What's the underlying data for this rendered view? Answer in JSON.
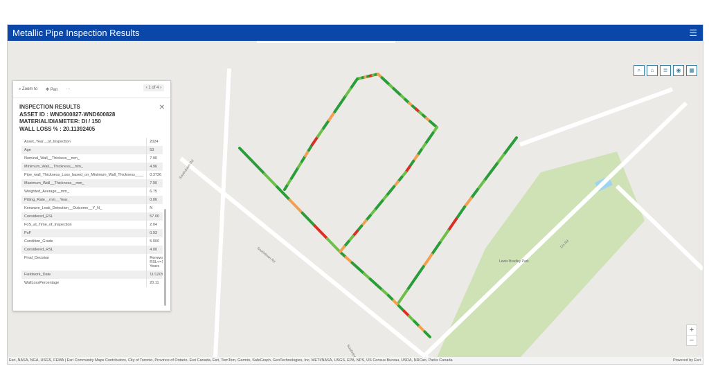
{
  "header": {
    "title": "Metallic Pipe Inspection Results",
    "menu_icon": "hamburger-icon"
  },
  "toolbar": {
    "icons": [
      "search-icon",
      "home-icon",
      "list-icon",
      "layers-icon",
      "basemap-gallery-icon"
    ]
  },
  "zoom": {
    "in": "+",
    "out": "−"
  },
  "popup": {
    "zoom_to": "Zoom to",
    "pan": "Pan",
    "more": "···",
    "pager": "1 of 4",
    "title_lines": [
      "INSPECTION RESULTS",
      "ASSET ID : WND600827-WND600828",
      "MATERIAL/DIAMETER: DI / 150",
      "WALL LOSS % : 20.11392405"
    ],
    "rows": [
      [
        "Asset_Year__of_Inspection",
        "2024"
      ],
      [
        "Age",
        "53"
      ],
      [
        "Nominal_Wall__Thickess__mm_",
        "7.90"
      ],
      [
        "Minimum_Wall__Thickness__mm_",
        "4.96"
      ],
      [
        "Pipe_wall_Thickness_Loss_based_on_Minimum_Wall_Thickness____",
        "0.3726"
      ],
      [
        "Maximum_Wall__Thickness__mm_",
        "7.90"
      ],
      [
        "Weighted_Average__mm_",
        "6.75"
      ],
      [
        "Pitting_Rate__mm__Year_",
        "0.06"
      ],
      [
        "Kenwave_Leak_Detection__Outcome__Y_N_",
        "N"
      ],
      [
        "Considered_ESL",
        "57.00"
      ],
      [
        "FoS_at_Time_of_Inspection",
        "2.04"
      ],
      [
        "PoF",
        "0.93"
      ],
      [
        "Condition_Grade",
        "5.000"
      ],
      [
        "Considered_RSL",
        "4.00"
      ],
      [
        "Final_Decision",
        "Renewal & RSL<=10 Years"
      ],
      [
        "Fieldwork_Date",
        "11/12/2024"
      ],
      [
        "WallLossPercentage",
        "20.11"
      ]
    ]
  },
  "map": {
    "street_labels": [
      "Southdown Rd",
      "Southdown Rd",
      "Southdown Rd",
      "Dix Rd",
      "Lewis Bradley Park"
    ],
    "condition_colors": [
      "#2a9d3a",
      "#6cc04a",
      "#f0a050",
      "#d73027"
    ]
  },
  "attribution": {
    "text": "Esri, NASA, NGA, USGS, FEMA | Esri Community Maps Contributors, City of Toronto, Province of Ontario, Esri Canada, Esri, TomTom, Garmin, SafeGraph, GeoTechnologies, Inc, METI/NASA, USGS, EPA, NPS, US Census Bureau, USDA, NRCan, Parks Canada",
    "powered": "Powered by Esri"
  }
}
